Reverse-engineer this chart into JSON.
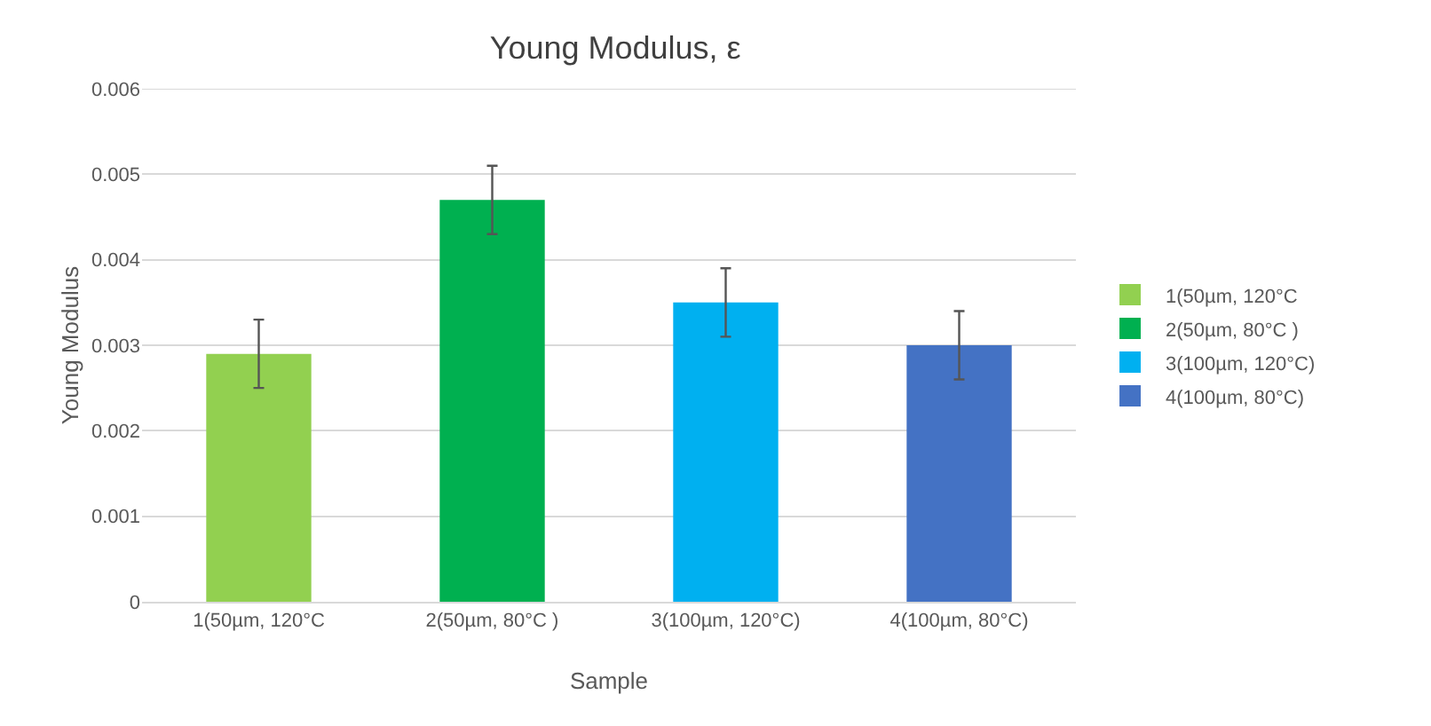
{
  "chart_data": {
    "type": "bar",
    "title": "Young Modulus, ε",
    "xlabel": "Sample",
    "ylabel": "Young Modulus",
    "categories": [
      "1(50µm, 120°C",
      "2(50µm, 80°C )",
      "3(100µm, 120°C)",
      "4(100µm, 80°C)"
    ],
    "series": [
      {
        "name": "1(50µm, 120°C",
        "color": "#92d050",
        "values": [
          0.0029,
          null,
          null,
          null
        ],
        "errors": [
          0.0004,
          null,
          null,
          null
        ]
      },
      {
        "name": "2(50µm, 80°C )",
        "color": "#00b050",
        "values": [
          null,
          0.0047,
          null,
          null
        ],
        "errors": [
          null,
          0.0004,
          null,
          null
        ]
      },
      {
        "name": "3(100µm, 120°C)",
        "color": "#00b0f0",
        "values": [
          null,
          null,
          0.0035,
          null
        ],
        "errors": [
          null,
          null,
          0.0004,
          null
        ]
      },
      {
        "name": "4(100µm, 80°C)",
        "color": "#4472c4",
        "values": [
          null,
          null,
          null,
          0.003
        ],
        "errors": [
          null,
          null,
          null,
          0.0004
        ]
      }
    ],
    "ylim": [
      0,
      0.006
    ],
    "yticks": [
      0,
      0.001,
      0.002,
      0.003,
      0.004,
      0.005,
      0.006
    ],
    "grid": true,
    "legend": "right"
  }
}
